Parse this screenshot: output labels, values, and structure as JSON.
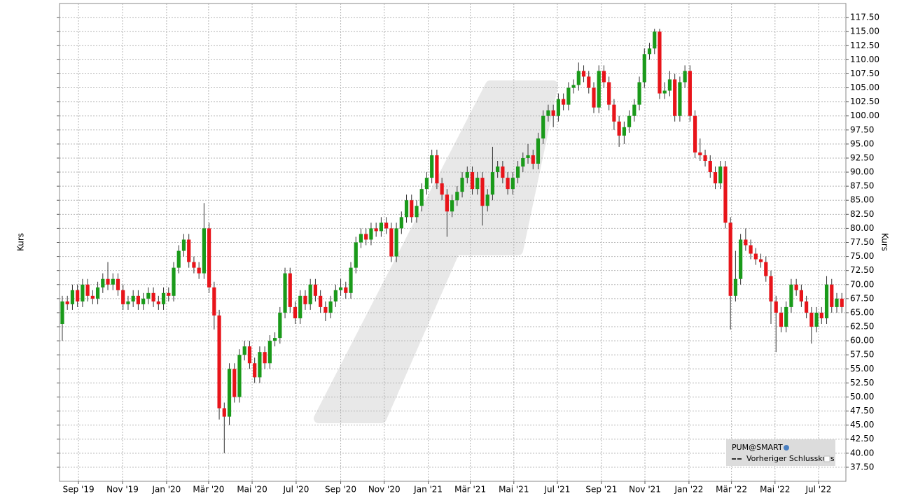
{
  "chart_data": {
    "type": "candlestick",
    "y_label": "Kurs",
    "legend": [
      "PUM@SMART",
      "Vorheriger Schlusskurs"
    ],
    "legend_position": "lower right",
    "up_color": "#1a9a1a",
    "down_color": "#e8141a",
    "grid": true,
    "xlim": [
      -0.55,
      154.8
    ],
    "xticks": [
      {
        "value": 3.2,
        "label": "Sep '19"
      },
      {
        "value": 11.9,
        "label": "Nov '19"
      },
      {
        "value": 20.6,
        "label": "Jan '20"
      },
      {
        "value": 28.9,
        "label": "Mär '20"
      },
      {
        "value": 37.5,
        "label": "Mai '20"
      },
      {
        "value": 46.2,
        "label": "Jul '20"
      },
      {
        "value": 55.0,
        "label": "Sep '20"
      },
      {
        "value": 63.6,
        "label": "Nov '20"
      },
      {
        "value": 72.3,
        "label": "Jan '21"
      },
      {
        "value": 80.6,
        "label": "Mär '21"
      },
      {
        "value": 89.2,
        "label": "Mai '21"
      },
      {
        "value": 97.8,
        "label": "Jul '21"
      },
      {
        "value": 106.5,
        "label": "Sep '21"
      },
      {
        "value": 115.1,
        "label": "Nov '21"
      },
      {
        "value": 123.8,
        "label": "Jan '22"
      },
      {
        "value": 132.2,
        "label": "Mär '22"
      },
      {
        "value": 140.8,
        "label": "Mai '22"
      },
      {
        "value": 149.4,
        "label": "Jul '22"
      }
    ],
    "ylim": [
      35,
      120
    ],
    "yticks": [
      {
        "value": 37.5,
        "label": "37.50"
      },
      {
        "value": 40,
        "label": "40.00"
      },
      {
        "value": 42.5,
        "label": "42.50"
      },
      {
        "value": 45,
        "label": "45.00"
      },
      {
        "value": 47.5,
        "label": "47.50"
      },
      {
        "value": 50,
        "label": "50.00"
      },
      {
        "value": 52.5,
        "label": "52.50"
      },
      {
        "value": 55,
        "label": "55.00"
      },
      {
        "value": 57.5,
        "label": "57.50"
      },
      {
        "value": 60,
        "label": "60.00"
      },
      {
        "value": 62.5,
        "label": "62.50"
      },
      {
        "value": 65,
        "label": "65.00"
      },
      {
        "value": 67.5,
        "label": "67.50"
      },
      {
        "value": 70,
        "label": "70.00"
      },
      {
        "value": 72.5,
        "label": "72.50"
      },
      {
        "value": 75,
        "label": "75.00"
      },
      {
        "value": 77.5,
        "label": "77.50"
      },
      {
        "value": 80,
        "label": "80.00"
      },
      {
        "value": 82.5,
        "label": "82.50"
      },
      {
        "value": 85,
        "label": "85.00"
      },
      {
        "value": 87.5,
        "label": "87.50"
      },
      {
        "value": 90,
        "label": "90.00"
      },
      {
        "value": 92.5,
        "label": "92.50"
      },
      {
        "value": 95,
        "label": "95.00"
      },
      {
        "value": 97.5,
        "label": "97.50"
      },
      {
        "value": 100,
        "label": "100.00"
      },
      {
        "value": 102.5,
        "label": "102.50"
      },
      {
        "value": 105,
        "label": "105.00"
      },
      {
        "value": 107.5,
        "label": "107.50"
      },
      {
        "value": 110,
        "label": "110.00"
      },
      {
        "value": 112.5,
        "label": "112.50"
      },
      {
        "value": 115,
        "label": "115.00"
      },
      {
        "value": 117.5,
        "label": "117.50"
      }
    ],
    "open": [
      63,
      67,
      66.5,
      69,
      67,
      70,
      68,
      67.5,
      69.5,
      71,
      70,
      71,
      69,
      66.5,
      67,
      68,
      66.5,
      67.5,
      68.5,
      67,
      66.5,
      68.5,
      68,
      73,
      76,
      78,
      74,
      73,
      72,
      80,
      69.5,
      64.5,
      48,
      46.5,
      55,
      50,
      57.5,
      59,
      56,
      53.5,
      58,
      56,
      60,
      60.5,
      65,
      72,
      66,
      64,
      68,
      66.5,
      70,
      68,
      66,
      65,
      67,
      69,
      69.5,
      68.5,
      73,
      77.5,
      79,
      78,
      80,
      79.5,
      81,
      80,
      75,
      80,
      82,
      85,
      82,
      84,
      87,
      89,
      93,
      88,
      86,
      83,
      85,
      86.5,
      89,
      90,
      87,
      89,
      84,
      86,
      90,
      91,
      89,
      87,
      89,
      91,
      92.5,
      93,
      91.5,
      96,
      100,
      101,
      100,
      103,
      102,
      105,
      105.5,
      108,
      107,
      105,
      101.5,
      108,
      106,
      102,
      99,
      96.5,
      98,
      100,
      102,
      106,
      111,
      112,
      115,
      104,
      104.5,
      106.5,
      100,
      106,
      108,
      100,
      93.5,
      93,
      92,
      90,
      88,
      91,
      81,
      68,
      71,
      78,
      77,
      75.5,
      74.5,
      74,
      71.5,
      67,
      65,
      62.5,
      66,
      70,
      69,
      67,
      65,
      62.5,
      65,
      64,
      70,
      66,
      67.5
    ],
    "high": [
      68,
      68,
      70,
      70,
      71,
      71,
      69,
      70.5,
      72,
      74,
      72,
      72,
      70,
      68,
      69,
      69,
      68.5,
      69.5,
      69.5,
      68,
      69.5,
      69.5,
      74,
      77,
      79,
      79,
      75,
      74,
      84.5,
      81,
      70.5,
      65.5,
      49,
      56,
      56,
      58.5,
      60,
      60,
      57,
      59,
      59,
      61,
      61.5,
      66,
      73,
      73,
      67,
      69,
      69,
      71,
      71,
      69,
      67,
      68,
      70,
      71,
      70.5,
      74,
      78.5,
      80,
      80,
      81,
      81,
      82,
      82,
      81,
      81,
      83,
      86,
      86,
      85,
      88,
      90,
      94,
      94,
      89,
      87,
      86,
      87.5,
      90,
      91,
      91,
      90,
      90,
      87,
      94.5,
      92,
      92,
      90,
      90,
      92,
      93.5,
      95,
      94,
      97,
      101,
      102,
      102,
      104,
      104,
      106,
      106.5,
      109.5,
      109,
      108,
      106,
      109,
      109,
      107,
      103,
      100,
      99,
      101,
      103,
      107,
      112,
      113,
      115.5,
      115.5,
      106,
      108,
      107.5,
      107,
      109,
      109,
      101,
      96,
      94,
      93,
      91,
      92,
      92,
      82,
      76,
      79,
      80,
      78,
      76.5,
      75.5,
      75,
      72.5,
      68,
      66,
      67,
      71,
      71,
      70,
      68,
      66,
      66,
      66,
      71.5,
      71,
      68.5,
      68.5
    ],
    "low": [
      60,
      65.5,
      65.5,
      66,
      66,
      67,
      66.5,
      66.5,
      68.5,
      69,
      69,
      68,
      65.5,
      65.5,
      66,
      65.5,
      65.5,
      66.5,
      66,
      65.5,
      65.5,
      67,
      67,
      72,
      75,
      73,
      72,
      71,
      71,
      68.5,
      62,
      46,
      40,
      45,
      49,
      49,
      56.5,
      55,
      52.5,
      52.5,
      55,
      55,
      59,
      59.5,
      64,
      65,
      63,
      63,
      65.5,
      65.5,
      67,
      65,
      63.5,
      64,
      66,
      68,
      67.5,
      67.5,
      72,
      76.5,
      77,
      77,
      78.5,
      78.5,
      79,
      74,
      74,
      79,
      81,
      81,
      81,
      83,
      86,
      88,
      87,
      85,
      78.5,
      82,
      84,
      85.5,
      88,
      86,
      86,
      80.5,
      83,
      85,
      89,
      88,
      86,
      86,
      88,
      90,
      91.5,
      90.5,
      90.5,
      95,
      99,
      98,
      99,
      101,
      101,
      104,
      104.5,
      106,
      104,
      100.5,
      100.5,
      105,
      101,
      97.5,
      94.5,
      95,
      97,
      99,
      101,
      105,
      110,
      111,
      103,
      103,
      103.5,
      99,
      99,
      105,
      99,
      92.5,
      92,
      91,
      89,
      87,
      87,
      80,
      62,
      67,
      70,
      76,
      74.5,
      73.5,
      73,
      70.5,
      63,
      58,
      61.5,
      61.5,
      65,
      68,
      66,
      64,
      59.5,
      61.5,
      63,
      63,
      65,
      65,
      65
    ],
    "close": [
      67,
      66.5,
      69,
      67,
      70,
      68,
      67.5,
      69.5,
      71,
      70,
      71,
      69,
      66.5,
      67,
      68,
      66.5,
      67.5,
      68.5,
      67,
      66.5,
      68.5,
      68,
      73,
      76,
      78,
      74,
      73,
      72,
      80,
      69.5,
      64.5,
      48,
      46.5,
      55,
      50,
      57.5,
      59,
      56,
      53.5,
      58,
      56,
      60,
      60.5,
      65,
      72,
      66,
      64,
      68,
      66.5,
      70,
      68,
      66,
      65,
      67,
      69,
      69.5,
      68.5,
      73,
      77.5,
      79,
      78,
      80,
      79.5,
      81,
      80,
      75,
      80,
      82,
      85,
      82,
      84,
      87,
      89,
      93,
      88,
      86,
      83,
      85,
      86.5,
      89,
      90,
      87,
      89,
      84,
      86,
      90,
      91,
      89,
      87,
      89,
      91,
      92.5,
      93,
      91.5,
      96,
      100,
      101,
      100,
      103,
      102,
      105,
      105.5,
      108,
      107,
      105,
      101.5,
      108,
      106,
      102,
      99,
      96.5,
      98,
      100,
      102,
      106,
      111,
      112,
      115,
      104,
      104.5,
      106.5,
      100,
      106,
      108,
      100,
      93.5,
      93,
      92,
      90,
      88,
      91,
      81,
      68,
      71,
      78,
      77,
      75.5,
      74.5,
      74,
      71.5,
      67,
      65,
      62.5,
      66,
      70,
      69,
      67,
      65,
      62.5,
      65,
      64,
      70,
      66,
      67.5,
      66
    ]
  }
}
